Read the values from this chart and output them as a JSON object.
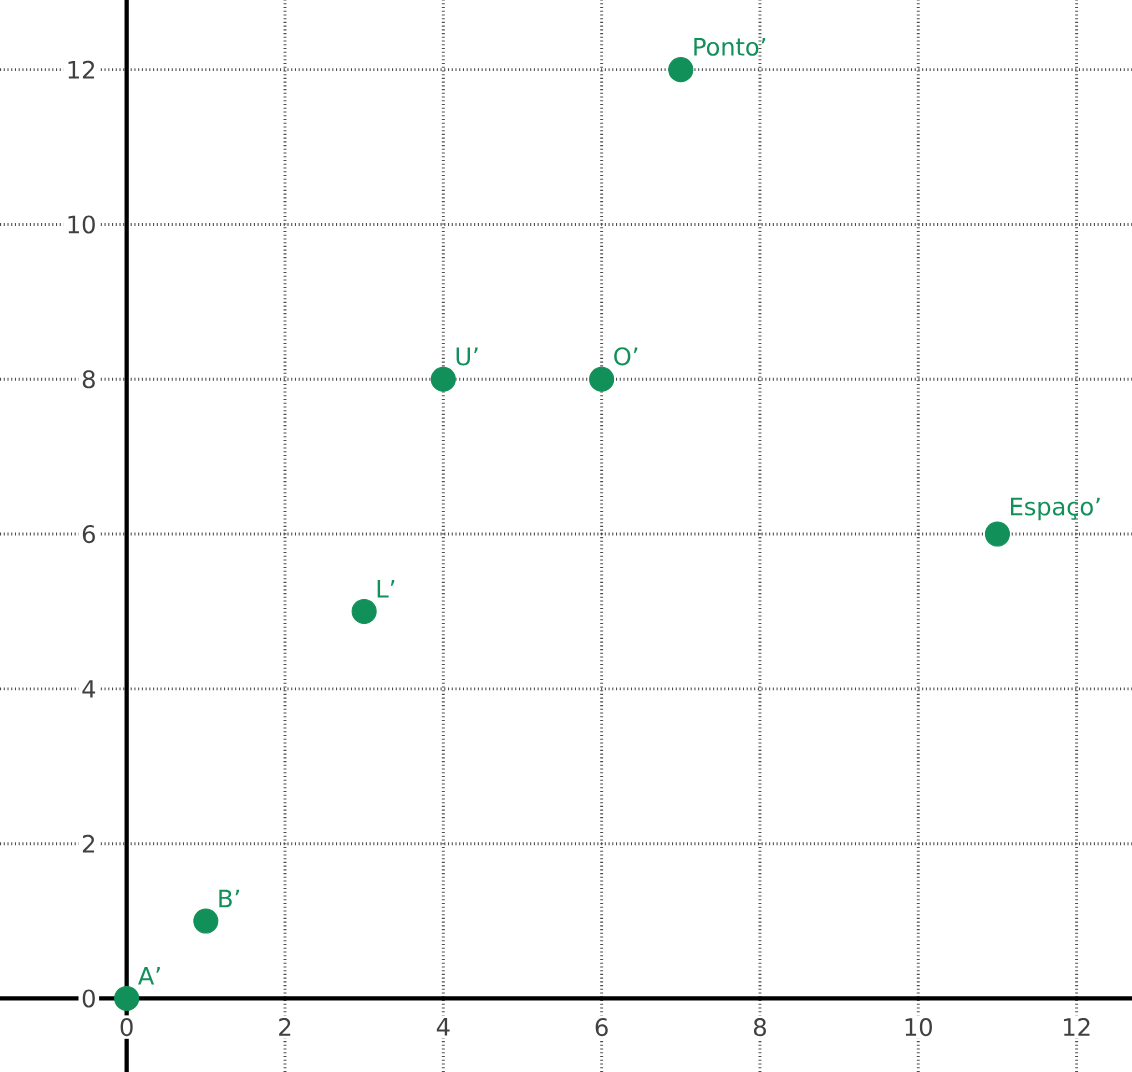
{
  "chart_data": {
    "type": "scatter",
    "x": [
      0,
      1,
      3,
      4,
      6,
      7,
      11
    ],
    "series": [
      {
        "color": "#12905a",
        "values": [
          0,
          1,
          5,
          8,
          8,
          12,
          6
        ]
      }
    ],
    "xlim": [
      -1.6,
      12.7
    ],
    "ylim": [
      -0.95,
      12.9
    ],
    "xticks": [
      0,
      2,
      4,
      6,
      8,
      10,
      12
    ],
    "yticks": [
      0,
      2,
      4,
      6,
      8,
      10,
      12
    ],
    "grid": true,
    "marker": "circle",
    "annotations": [
      {
        "text": "A’",
        "x": 0,
        "y": 0
      },
      {
        "text": "B’",
        "x": 1,
        "y": 1
      },
      {
        "text": "L’",
        "x": 3,
        "y": 5
      },
      {
        "text": "U’",
        "x": 4,
        "y": 8
      },
      {
        "text": "O’",
        "x": 6,
        "y": 8
      },
      {
        "text": "Ponto’",
        "x": 7,
        "y": 12
      },
      {
        "text": "Espaço’",
        "x": 11,
        "y": 6
      }
    ]
  }
}
